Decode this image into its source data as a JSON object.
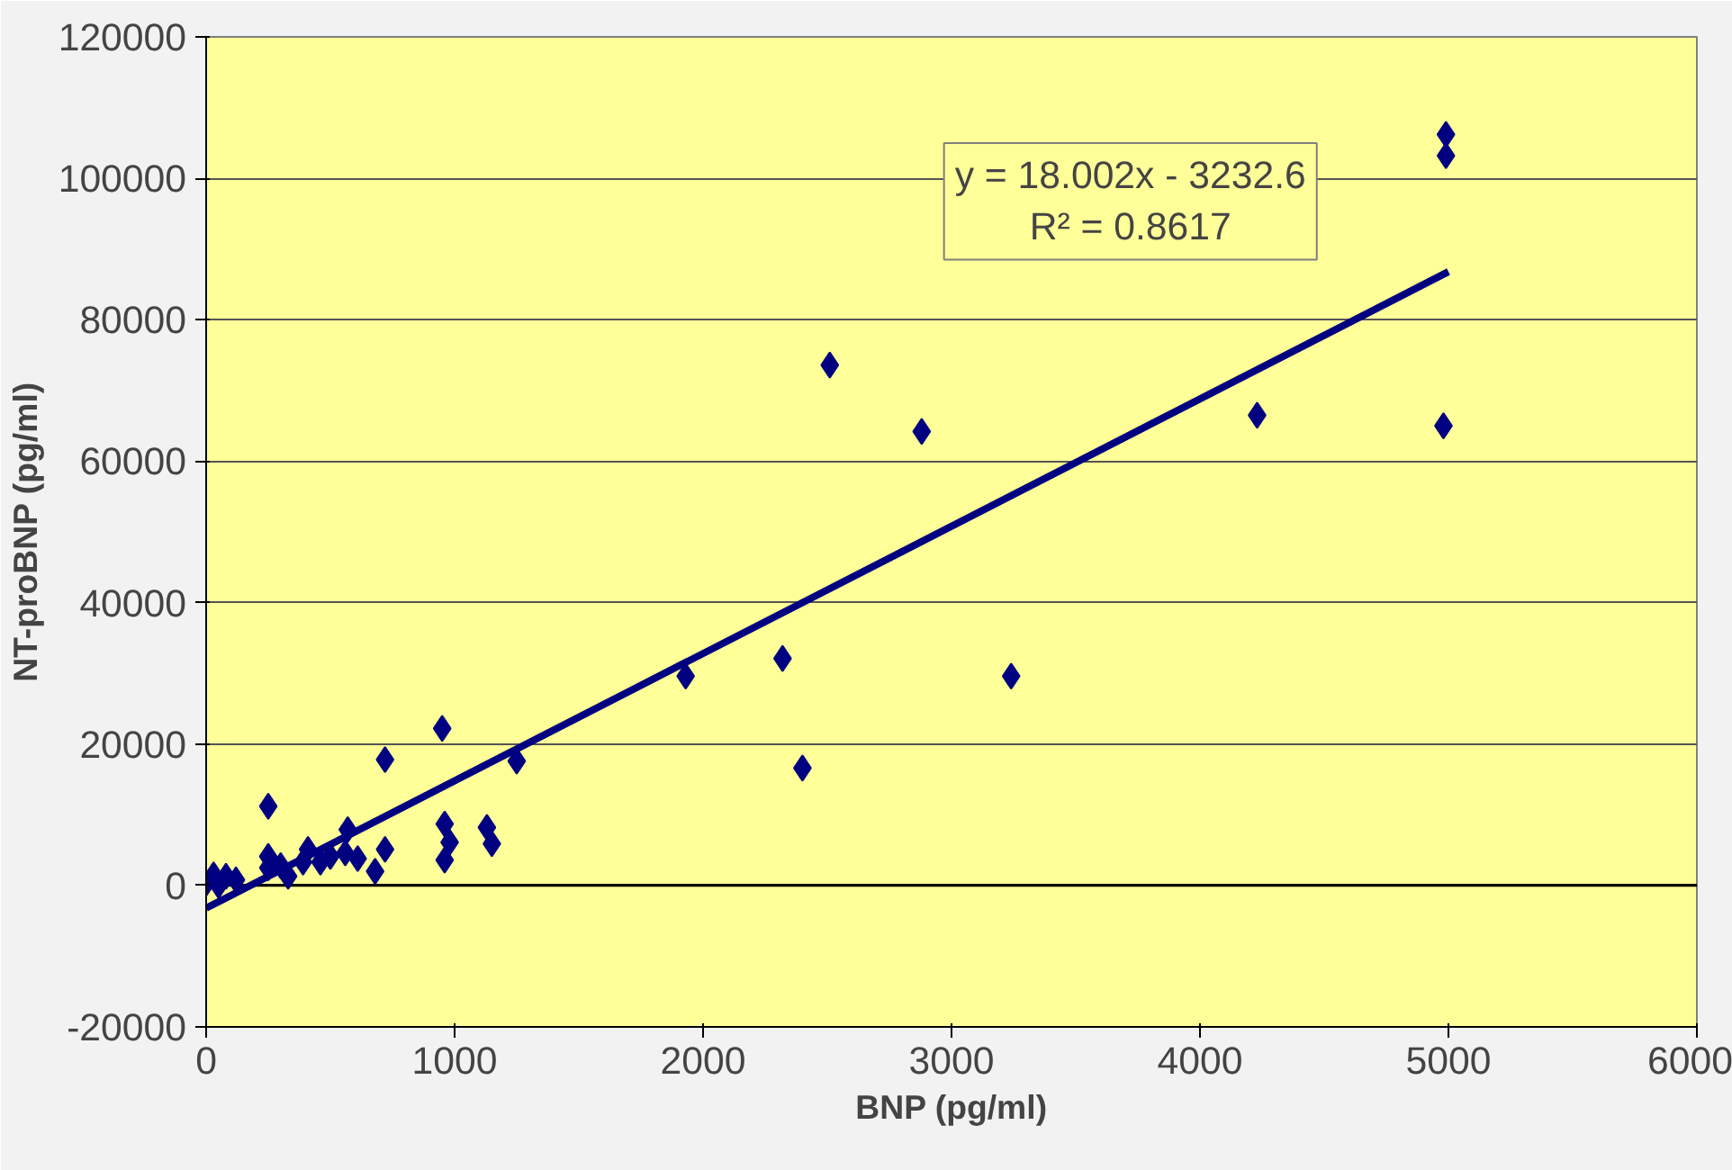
{
  "chart_data": {
    "type": "scatter",
    "xlabel": "BNP (pg/ml)",
    "ylabel": "NT-proBNP (pg/ml)",
    "xlim": [
      0,
      6000
    ],
    "ylim": [
      -20000,
      120000
    ],
    "xticks": [
      0,
      1000,
      2000,
      3000,
      4000,
      5000,
      6000
    ],
    "yticks": [
      -20000,
      0,
      20000,
      40000,
      60000,
      80000,
      100000,
      120000
    ],
    "grid": "y",
    "marker": "diamond",
    "annotations": [
      "y = 18.002x - 3232.6\nR² = 0.8617"
    ],
    "series": [
      {
        "color": "#000080",
        "x": [
          4990,
          4990,
          4980,
          4230,
          2510,
          2880,
          2320,
          1930,
          3240,
          2400,
          950,
          720,
          1250,
          250,
          570,
          960,
          1130,
          1150,
          980,
          960,
          720,
          680,
          610,
          560,
          500,
          410,
          390,
          330,
          300,
          250,
          250,
          460,
          30,
          80,
          0,
          120,
          50
        ],
        "values": [
          106200,
          103200,
          65000,
          66500,
          73600,
          64200,
          32100,
          29600,
          29600,
          16600,
          22200,
          17800,
          17600,
          11200,
          7900,
          8700,
          8200,
          5900,
          6100,
          3600,
          5100,
          2000,
          3800,
          4600,
          4100,
          5100,
          3300,
          1300,
          2800,
          4100,
          2500,
          3300,
          1500,
          1300,
          300,
          800,
          0
        ]
      },
      {
        "type": "line",
        "marker": "none",
        "color": "#000080",
        "x": [
          0,
          5000
        ],
        "values": [
          -3200,
          86800
        ]
      }
    ]
  }
}
